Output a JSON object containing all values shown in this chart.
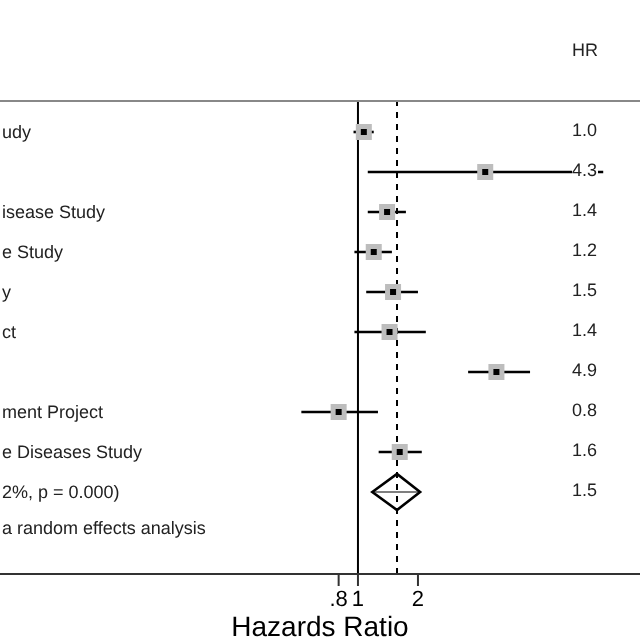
{
  "chart_data": {
    "type": "scatter",
    "orientation": "horizontal",
    "xlabel": "Hazards Ratio",
    "log": "x",
    "categories": [
      "udy",
      null,
      "isease Study",
      "e Study",
      "y",
      "ct",
      null,
      "ment Project",
      "e Diseases Study",
      "2%, p = 0.000)"
    ],
    "series": [
      {
        "color": "#000000",
        "marker": "square",
        "values": [
          1.07,
          4.35,
          1.4,
          1.2,
          1.5,
          1.44,
          4.95,
          0.8,
          1.62,
          null
        ],
        "errors": [
          [
            0.95,
            1.2
          ],
          [
            1.12,
            17
          ],
          [
            1.12,
            1.74
          ],
          [
            0.96,
            1.48
          ],
          [
            1.1,
            2.0
          ],
          [
            0.96,
            2.19
          ],
          [
            3.57,
            7.3
          ],
          [
            0.52,
            1.26
          ],
          [
            1.27,
            2.09
          ],
          null
        ]
      },
      {
        "color": "#000000",
        "marker": "diamond",
        "values": [
          null,
          null,
          null,
          null,
          null,
          null,
          null,
          null,
          null,
          1.57
        ],
        "errors": [
          null,
          null,
          null,
          null,
          null,
          null,
          null,
          null,
          null,
          [
            1.18,
            2.05
          ]
        ]
      }
    ],
    "xlim": [
      0.016,
      26
    ],
    "xticks": [
      {
        "value": 0.8,
        "label": ".8"
      },
      1,
      2
    ],
    "ref_lines": [
      {
        "axis": "x",
        "value": 1,
        "line_style": "solid",
        "color": "#000000"
      },
      {
        "axis": "x",
        "value": 1.57,
        "line_style": "dashed",
        "color": "#000000"
      }
    ],
    "annotations": [
      "HR",
      "1.0",
      "4.3",
      "1.4",
      "1.2",
      "1.5",
      "1.4",
      "4.9",
      "0.8",
      "1.6",
      "1.5",
      "a random effects analysis"
    ]
  }
}
